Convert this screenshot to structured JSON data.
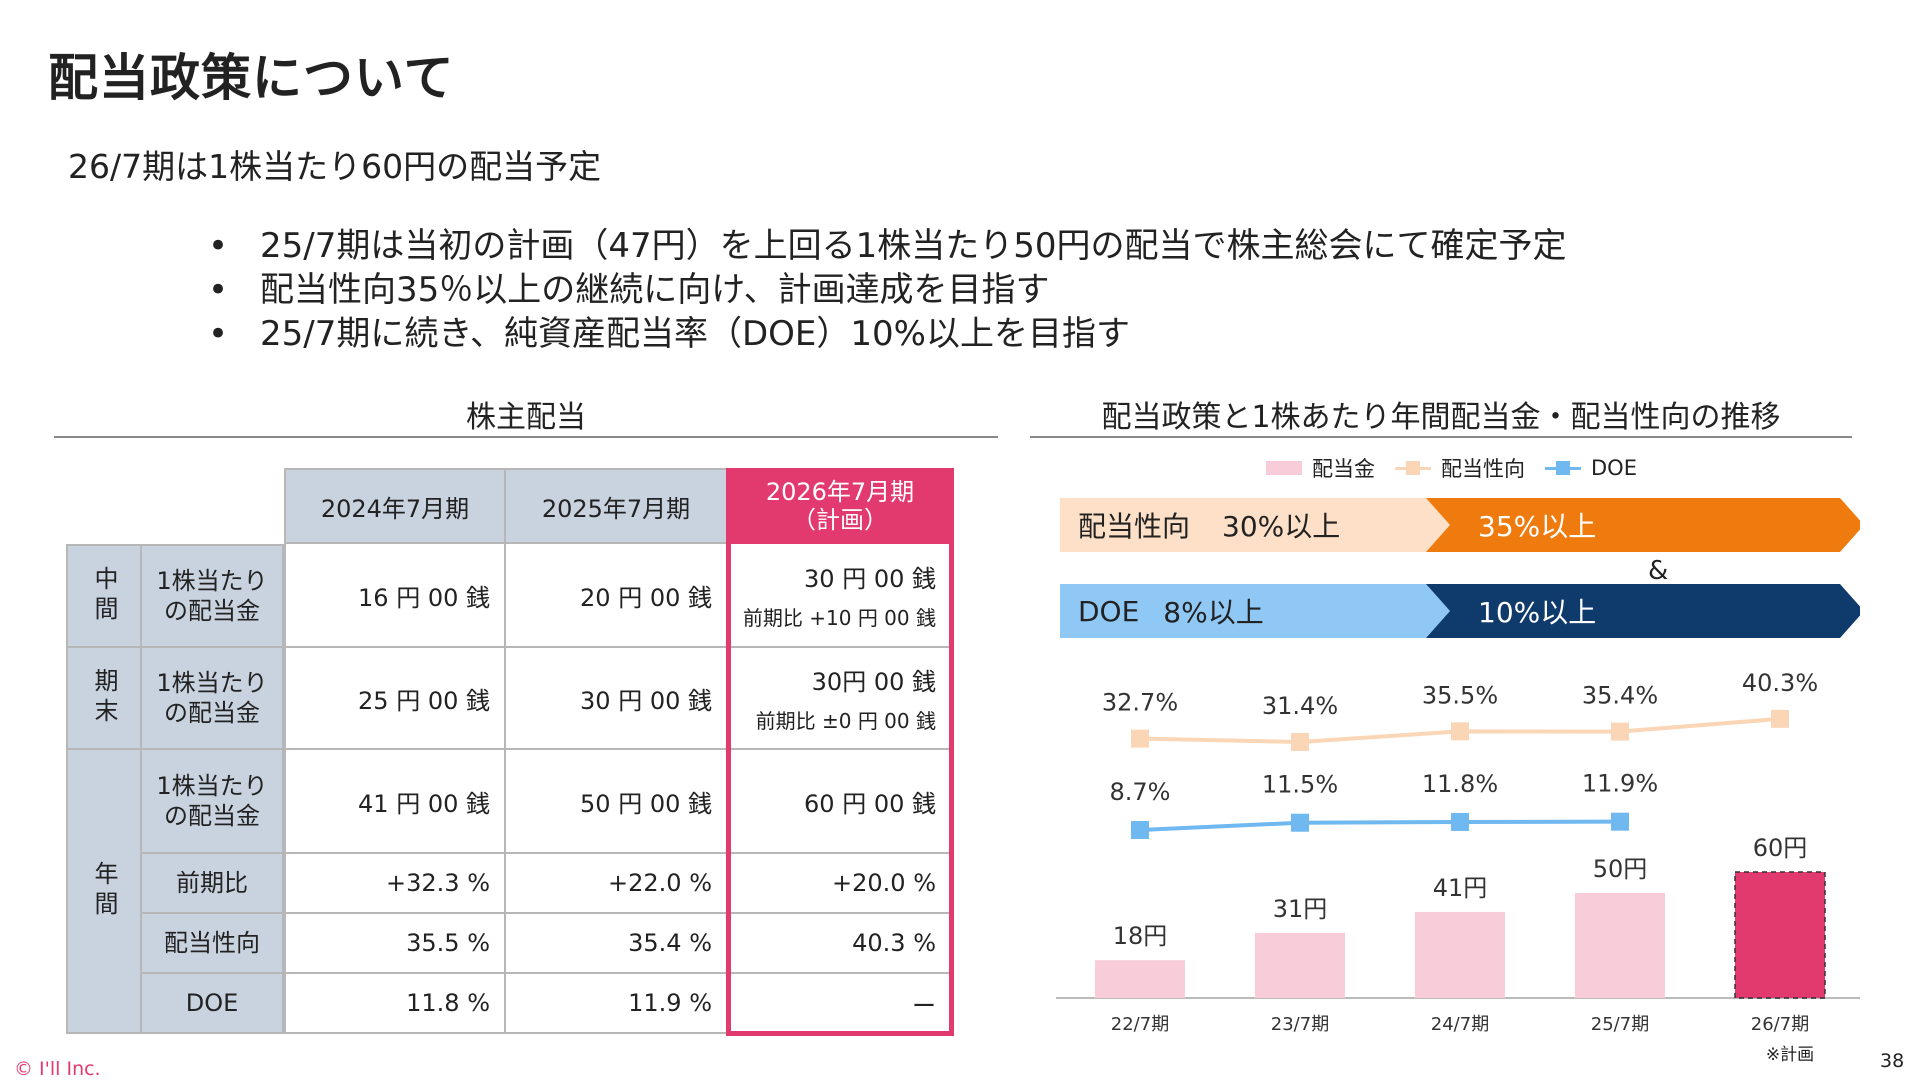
{
  "title": "配当政策について",
  "lead": "26/7期は1株当たり60円の配当予定",
  "bullets": [
    "25/7期は当初の計画（47円）を上回る1株当たり50円の配当で株主総会にて確定予定",
    "配当性向35％以上の継続に向け、計画達成を目指す",
    "25/7期に続き、純資産配当率（DOE）10%以上を目指す"
  ],
  "bullet_symbol": "•",
  "table_section": {
    "title": "株主配当",
    "columns": [
      "2024年7月期",
      "2025年7月期",
      "2026年7月期",
      "（計画）"
    ],
    "groups": [
      "中間",
      "期末",
      "年間"
    ],
    "row_labels": {
      "dps": "1株当たり\nの配当金",
      "yoy": "前期比",
      "payout": "配当性向",
      "doe": "DOE"
    },
    "interim": {
      "y2024": "16 円 00 銭",
      "y2025": "20 円 00 銭",
      "y2026": "30 円 00 銭",
      "y2026_sub": "前期比 +10 円 00 銭"
    },
    "final": {
      "y2024": "25 円 00 銭",
      "y2025": "30 円 00 銭",
      "y2026": "30円 00 銭",
      "y2026_sub": "前期比 ±0 円 00 銭"
    },
    "annual_dps": {
      "y2024": "41 円 00 銭",
      "y2025": "50 円 00 銭",
      "y2026": "60 円 00 銭"
    },
    "annual_yoy": {
      "y2024": "+32.3 %",
      "y2025": "+22.0 %",
      "y2026": "+20.0 %"
    },
    "annual_payout": {
      "y2024": "35.5 %",
      "y2025": "35.4 %",
      "y2026": "40.3 %"
    },
    "annual_doe": {
      "y2024": "11.8 %",
      "y2025": "11.9 %",
      "y2026": "ー"
    },
    "highlight_color": "#e23a6f",
    "header_color": "#c9d3df"
  },
  "chart_section": {
    "title": "配当政策と1株あたり年間配当金・配当性向の推移",
    "legend": [
      "配当金",
      "配当性向",
      "DOE"
    ],
    "policy": {
      "payout_label": "配当性向",
      "payout_old": "30%以上",
      "payout_new": "35%以上",
      "ampersand": "&",
      "doe_label": "DOE",
      "doe_old": "8%以上",
      "doe_new": "10%以上"
    },
    "footnote": "※計画"
  },
  "chart_data": {
    "type": "bar",
    "categories": [
      "22/7期",
      "23/7期",
      "24/7期",
      "25/7期",
      "26/7期"
    ],
    "series": [
      {
        "name": "配当金",
        "values": [
          18,
          31,
          41,
          50,
          60
        ],
        "labels": [
          "18円",
          "31円",
          "41円",
          "50円",
          "60円"
        ],
        "color": "#f8cdd9",
        "highlight_last": "#e23a6f"
      },
      {
        "name": "配当性向",
        "values": [
          32.7,
          31.4,
          35.5,
          35.4,
          40.3
        ],
        "labels": [
          "32.7%",
          "31.4%",
          "35.5%",
          "35.4%",
          "40.3%"
        ],
        "color": "#fbd6b6"
      },
      {
        "name": "DOE",
        "values": [
          8.7,
          11.5,
          11.8,
          11.9,
          null
        ],
        "labels": [
          "8.7%",
          "11.5%",
          "11.8%",
          "11.9%",
          null
        ],
        "color": "#6fb8f0"
      }
    ],
    "legend_position": "top"
  },
  "footer": {
    "copyright": "© I'll Inc.",
    "page": "38"
  }
}
